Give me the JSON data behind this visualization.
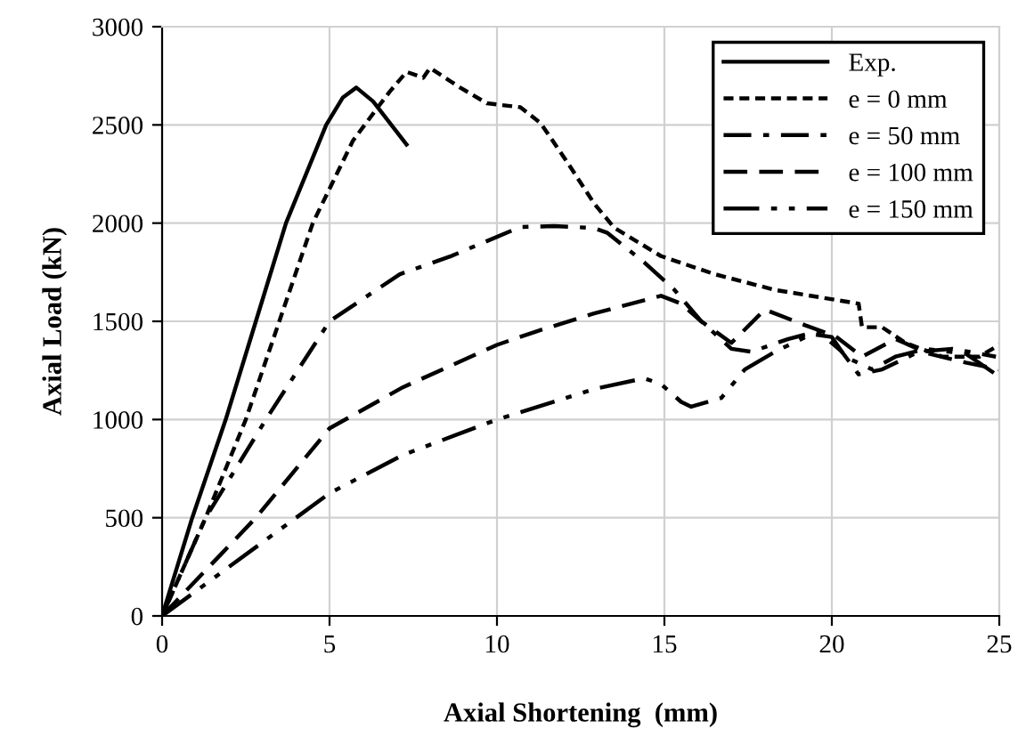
{
  "chart_data": {
    "type": "line",
    "xlabel": "Axial Shortening  (mm)",
    "ylabel": "Axial Load (kN)",
    "xlim": [
      0,
      25
    ],
    "ylim": [
      0,
      3000
    ],
    "xticks": [
      0,
      5,
      10,
      15,
      20,
      25
    ],
    "yticks": [
      0,
      500,
      1000,
      1500,
      2000,
      2500,
      3000
    ],
    "grid": true,
    "legend": "top right",
    "marker": "none",
    "series": [
      {
        "name": "Exp.",
        "color": "#000000",
        "line_style": "solid",
        "x": [
          0,
          0.9,
          1.9,
          2.8,
          3.7,
          4.9,
          5.4,
          5.8,
          6.3,
          7.3
        ],
        "values": [
          0,
          500,
          1000,
          1500,
          2000,
          2500,
          2640,
          2690,
          2620,
          2400
        ]
      },
      {
        "name": "e = 0 mm",
        "color": "#000000",
        "line_style": "dotted",
        "x": [
          0,
          1.3,
          2.5,
          3.5,
          4.5,
          5.7,
          6.4,
          6.8,
          7.3,
          7.8,
          8.0,
          8.9,
          9.7,
          10.7,
          11.3,
          12.1,
          12.9,
          13.5,
          14.9,
          16.5,
          18.3,
          20.8,
          20.9,
          21.5,
          22.2,
          23.3,
          24.4,
          25
        ],
        "values": [
          0,
          500,
          1000,
          1500,
          2000,
          2420,
          2580,
          2670,
          2770,
          2740,
          2790,
          2690,
          2610,
          2590,
          2510,
          2310,
          2100,
          1977,
          1832,
          1740,
          1660,
          1590,
          1470,
          1470,
          1390,
          1320,
          1320,
          1380
        ]
      },
      {
        "name": "e = 50 mm",
        "color": "#000000",
        "line_style": "dashdot",
        "x": [
          0,
          1.3,
          3.1,
          5.0,
          7.1,
          8.6,
          10.7,
          11.7,
          12.9,
          13.3,
          14.4,
          15.3,
          16.1,
          17.0,
          17.6,
          18.7,
          19.6,
          20.3,
          20.8,
          21.5,
          22.6,
          23.6,
          24.9
        ],
        "values": [
          0,
          500,
          1000,
          1500,
          1740,
          1830,
          1980,
          1985,
          1975,
          1950,
          1800,
          1660,
          1500,
          1360,
          1345,
          1410,
          1450,
          1345,
          1230,
          1255,
          1345,
          1360,
          1320
        ]
      },
      {
        "name": "e = 100 mm",
        "color": "#000000",
        "line_style": "dashed",
        "x": [
          0,
          2.8,
          5.0,
          7.2,
          10.0,
          11.2,
          12.9,
          14.9,
          15.5,
          16.1,
          17.0,
          18.0,
          19.2,
          20.1,
          20.9,
          21.9,
          22.9,
          24.0,
          25
        ],
        "values": [
          0,
          500,
          955,
          1165,
          1380,
          1450,
          1540,
          1630,
          1590,
          1500,
          1390,
          1560,
          1480,
          1425,
          1320,
          1410,
          1335,
          1290,
          1255
        ]
      },
      {
        "name": "e = 150 mm",
        "color": "#000000",
        "line_style": "dashdotdot",
        "x": [
          0,
          5.0,
          7.2,
          10.0,
          12.9,
          14.4,
          14.9,
          15.5,
          15.8,
          16.7,
          17.4,
          18.3,
          19.4,
          20.0,
          20.4,
          21.2,
          21.9,
          22.8,
          24.0,
          24.9
        ],
        "values": [
          0,
          625,
          820,
          1000,
          1155,
          1210,
          1180,
          1090,
          1065,
          1110,
          1255,
          1345,
          1435,
          1420,
          1320,
          1255,
          1320,
          1360,
          1335,
          1230
        ]
      }
    ]
  }
}
